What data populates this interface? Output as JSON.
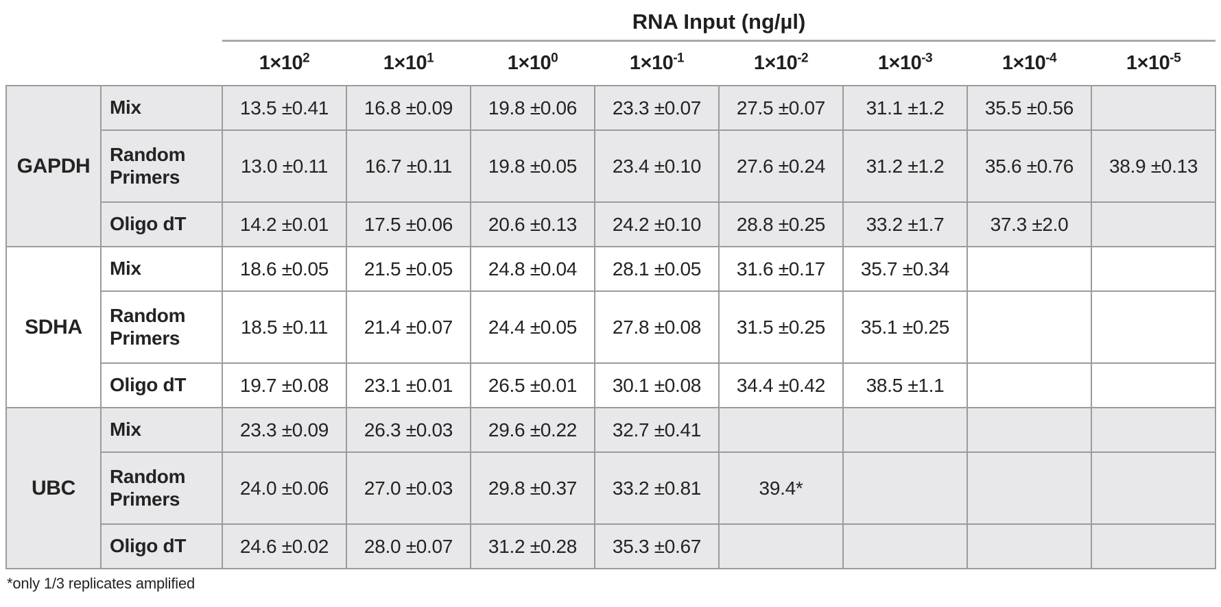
{
  "chart_data": {
    "type": "table",
    "title": "RNA Input (ng/µl)",
    "columns": [
      {
        "base": "1×10",
        "exponent": "2"
      },
      {
        "base": "1×10",
        "exponent": "1"
      },
      {
        "base": "1×10",
        "exponent": "0"
      },
      {
        "base": "1×10",
        "exponent": "-1"
      },
      {
        "base": "1×10",
        "exponent": "-2"
      },
      {
        "base": "1×10",
        "exponent": "-3"
      },
      {
        "base": "1×10",
        "exponent": "-4"
      },
      {
        "base": "1×10",
        "exponent": "-5"
      }
    ],
    "row_groups": [
      {
        "gene": "GAPDH",
        "shaded": true,
        "rows": [
          {
            "primer": "Mix",
            "values": [
              "13.5 ±0.41",
              "16.8 ±0.09",
              "19.8 ±0.06",
              "23.3 ±0.07",
              "27.5 ±0.07",
              "31.1 ±1.2",
              "35.5 ±0.56",
              ""
            ]
          },
          {
            "primer": "Random Primers",
            "values": [
              "13.0 ±0.11",
              "16.7 ±0.11",
              "19.8 ±0.05",
              "23.4 ±0.10",
              "27.6 ±0.24",
              "31.2 ±1.2",
              "35.6 ±0.76",
              "38.9 ±0.13"
            ]
          },
          {
            "primer": "Oligo dT",
            "values": [
              "14.2 ±0.01",
              "17.5 ±0.06",
              "20.6 ±0.13",
              "24.2 ±0.10",
              "28.8 ±0.25",
              "33.2 ±1.7",
              "37.3 ±2.0",
              ""
            ]
          }
        ]
      },
      {
        "gene": "SDHA",
        "shaded": false,
        "rows": [
          {
            "primer": "Mix",
            "values": [
              "18.6 ±0.05",
              "21.5 ±0.05",
              "24.8 ±0.04",
              "28.1 ±0.05",
              "31.6 ±0.17",
              "35.7 ±0.34",
              "",
              ""
            ]
          },
          {
            "primer": "Random Primers",
            "values": [
              "18.5 ±0.11",
              "21.4 ±0.07",
              "24.4 ±0.05",
              "27.8 ±0.08",
              "31.5 ±0.25",
              "35.1 ±0.25",
              "",
              ""
            ]
          },
          {
            "primer": "Oligo dT",
            "values": [
              "19.7 ±0.08",
              "23.1 ±0.01",
              "26.5 ±0.01",
              "30.1 ±0.08",
              "34.4 ±0.42",
              "38.5 ±1.1",
              "",
              ""
            ]
          }
        ]
      },
      {
        "gene": "UBC",
        "shaded": true,
        "rows": [
          {
            "primer": "Mix",
            "values": [
              "23.3 ±0.09",
              "26.3 ±0.03",
              "29.6 ±0.22",
              "32.7 ±0.41",
              "",
              "",
              "",
              ""
            ]
          },
          {
            "primer": "Random Primers",
            "values": [
              "24.0 ±0.06",
              "27.0 ±0.03",
              "29.8 ±0.37",
              "33.2 ±0.81",
              "39.4*",
              "",
              "",
              ""
            ]
          },
          {
            "primer": "Oligo dT",
            "values": [
              "24.6 ±0.02",
              "28.0 ±0.07",
              "31.2 ±0.28",
              "35.3 ±0.67",
              "",
              "",
              "",
              ""
            ]
          }
        ]
      }
    ],
    "footnote": "*only 1/3 replicates amplified"
  }
}
